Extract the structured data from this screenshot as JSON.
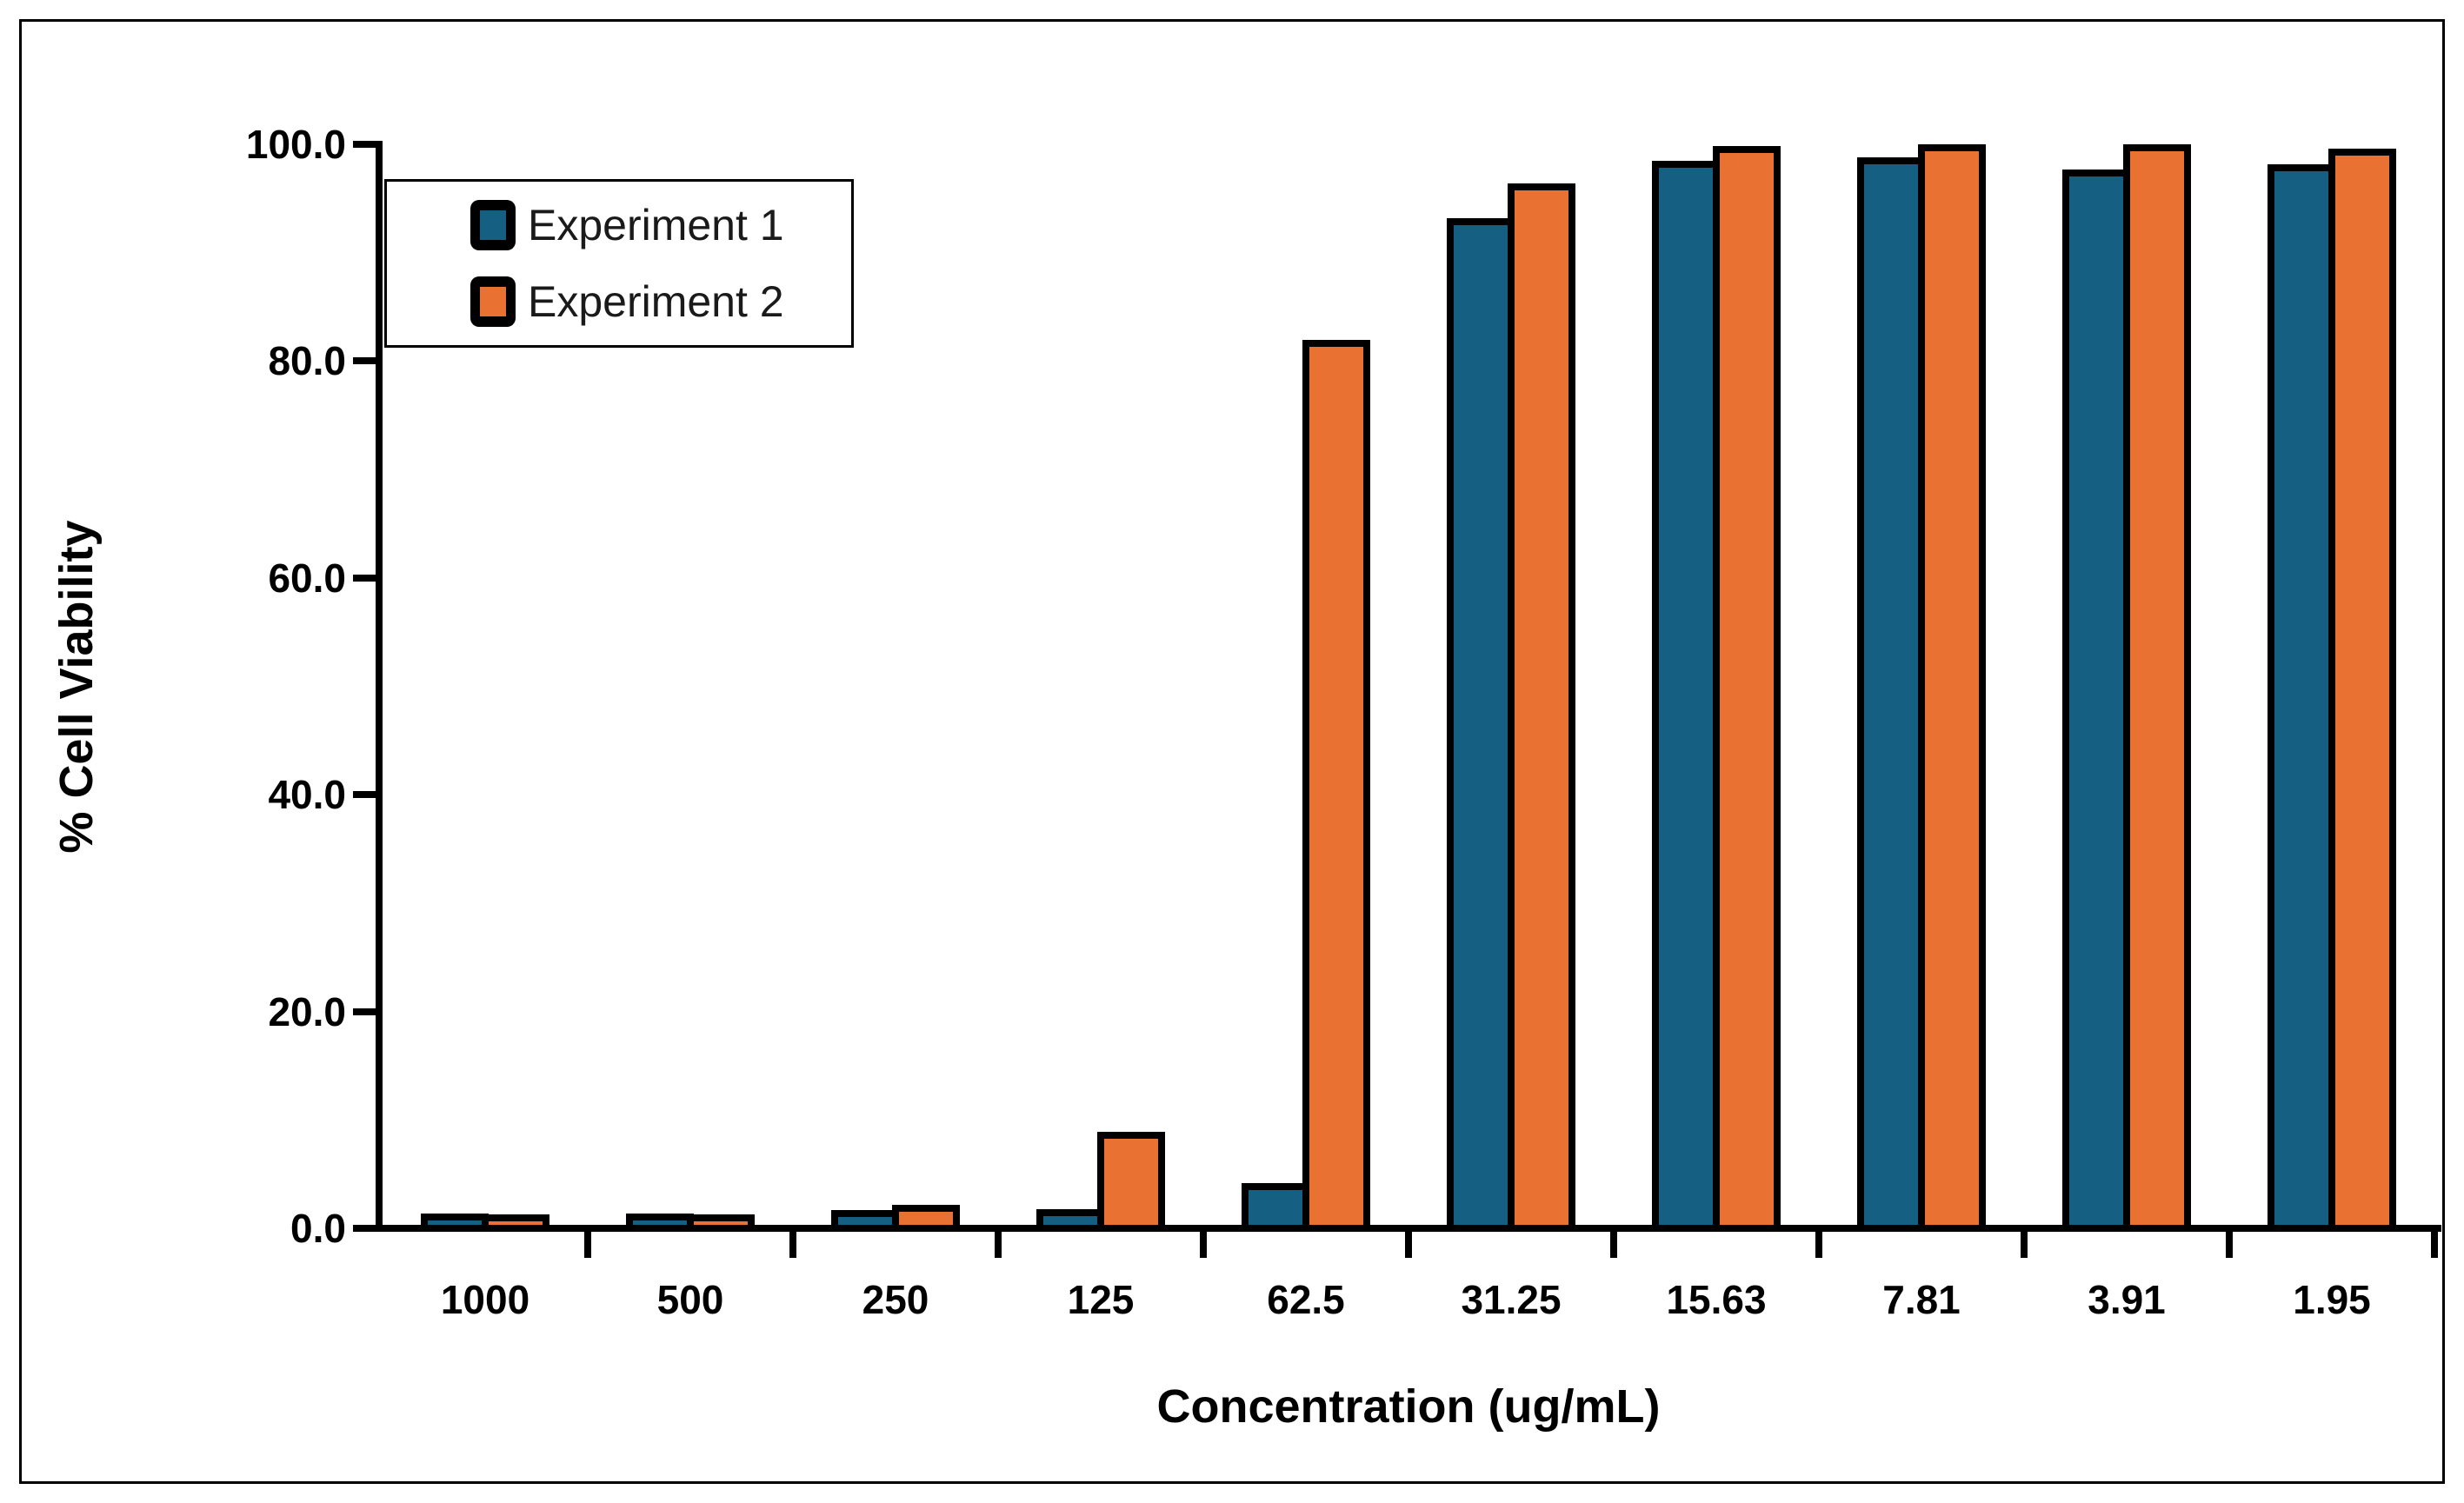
{
  "chart_data": {
    "type": "bar",
    "title": "",
    "categories": [
      "1000",
      "500",
      "250",
      "125",
      "62.5",
      "31.25",
      "15.63",
      "7.81",
      "3.91",
      "1.95"
    ],
    "series": [
      {
        "name": "Experiment 1",
        "color": "#156082",
        "values": [
          0.4,
          0.4,
          0.7,
          0.8,
          3.2,
          92.2,
          97.5,
          97.8,
          96.7,
          97.2
        ]
      },
      {
        "name": "Experiment 2",
        "color": "#E97132",
        "values": [
          0.3,
          0.3,
          1.2,
          7.9,
          81.0,
          95.4,
          98.9,
          99.0,
          99.0,
          98.6
        ]
      }
    ],
    "xlabel": "Concentration (ug/mL)",
    "ylabel": "% Cell Viability",
    "ylim": [
      0,
      100
    ],
    "ytick_step": 20,
    "yticks": [
      0,
      20,
      40,
      60,
      80,
      100
    ],
    "ytick_labels": [
      "0.0",
      "20.0",
      "40.0",
      "60.0",
      "80.0",
      "100.0"
    ],
    "grid": false,
    "legend_position": "upper-left-inside",
    "bar_border_color": "#000000",
    "background_color": "#FFFFFF"
  }
}
